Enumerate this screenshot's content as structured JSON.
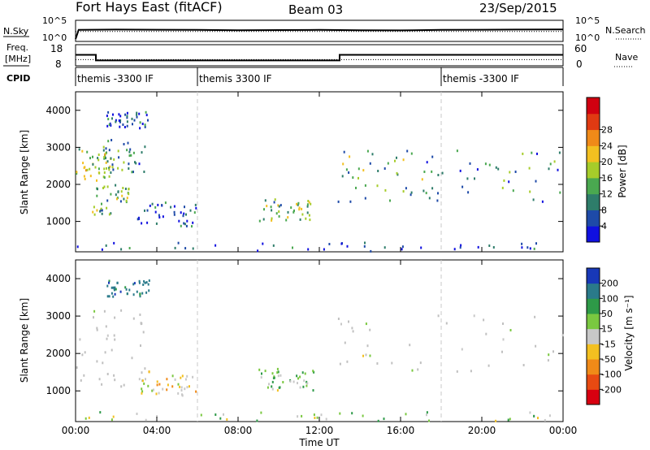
{
  "header": {
    "station": "Fort Hays East (fitACF)",
    "beam": "Beam 03",
    "date": "23/Sep/2015"
  },
  "top_panels": {
    "nsky_label": "N.Sky",
    "nsky_ticks": [
      "10^5",
      "10^0"
    ],
    "nsearch_label": "N.Search",
    "nsearch_ticks": [
      "10^5",
      "10^0"
    ],
    "freq_label": "Freq.",
    "freq_unit": "[MHz]",
    "freq_ticks": [
      "18",
      "8"
    ],
    "nave_label": "Nave",
    "nave_ticks": [
      "60",
      "0"
    ],
    "cpid_label": "CPID",
    "cpid_segments": [
      {
        "label": "themis -3300 IF",
        "start_hour": 0,
        "end_hour": 6
      },
      {
        "label": "themis 3300 IF",
        "start_hour": 6,
        "end_hour": 18
      },
      {
        "label": "themis -3300 IF",
        "start_hour": 18,
        "end_hour": 24
      }
    ]
  },
  "x_axis": {
    "label": "Time UT",
    "ticks": [
      "00:00",
      "04:00",
      "08:00",
      "12:00",
      "16:00",
      "20:00",
      "00:00"
    ],
    "range_hours": [
      0,
      24
    ]
  },
  "y_axis": {
    "label": "Slant Range [km]",
    "ticks": [
      "1000",
      "2000",
      "3000",
      "4000"
    ],
    "range_km": [
      180,
      4500
    ]
  },
  "power_colorbar": {
    "label": "Power [dB]",
    "ticks": [
      "4",
      "8",
      "12",
      "16",
      "20",
      "24",
      "28"
    ],
    "colors": [
      "#1010e0",
      "#1e4aa8",
      "#2e7d6a",
      "#4aa850",
      "#a6cc2a",
      "#f3c020",
      "#f08a18",
      "#e03a12",
      "#d00010"
    ]
  },
  "velocity_colorbar": {
    "label": "Velocity [m s⁻¹]",
    "ticks": [
      "200",
      "100",
      "50",
      "15",
      "-15",
      "-50",
      "-100",
      "-200"
    ],
    "colors": [
      "#1838b8",
      "#2a7a8a",
      "#2e9a48",
      "#7ac840",
      "#c8c8c8",
      "#f3c020",
      "#f08a18",
      "#e84a12",
      "#d80010"
    ],
    "ground_scatter_color": "#c0c0c0"
  },
  "chart_data": [
    {
      "type": "line",
      "title": "N.Sky / N.Search",
      "series": [
        {
          "name": "N.Sky",
          "note_scale": "log",
          "x_hours": [
            0,
            0.15,
            2,
            4,
            6,
            8,
            10,
            12,
            14,
            16,
            18,
            20,
            22,
            24
          ],
          "y_log10": [
            0,
            2.8,
            2.9,
            2.85,
            2.8,
            2.7,
            2.75,
            2.8,
            2.7,
            2.65,
            2.8,
            2.85,
            2.9,
            2.95
          ]
        },
        {
          "name": "N.Search",
          "x_hours": [
            0,
            24
          ],
          "y_log10": [
            2.3,
            2.3
          ]
        }
      ]
    },
    {
      "type": "line",
      "title": "Freq. / Nave",
      "series": [
        {
          "name": "Freq. [MHz]",
          "x_hours": [
            0,
            1,
            1,
            13,
            13,
            24
          ],
          "y": [
            13.5,
            13.5,
            10.2,
            10.2,
            13.5,
            13.5
          ],
          "ylim": [
            8,
            18
          ]
        },
        {
          "name": "Nave",
          "x_hours": [
            0,
            24
          ],
          "y": [
            16,
            16
          ],
          "ylim": [
            0,
            60
          ]
        }
      ]
    },
    {
      "type": "heatmap",
      "title": "Power [dB]",
      "xlabel": "Time UT",
      "ylabel": "Slant Range [km]",
      "x_unit": "hours UT",
      "xlim": [
        0,
        24
      ],
      "ylim": [
        180,
        4500
      ],
      "regions": [
        {
          "t0": 0.0,
          "t1": 1.7,
          "r0": 2000,
          "r1": 3000,
          "power": 18
        },
        {
          "t0": 0.8,
          "t1": 3.4,
          "r0": 2300,
          "r1": 3200,
          "power": 12
        },
        {
          "t0": 0.8,
          "t1": 2.6,
          "r0": 1150,
          "r1": 2050,
          "power": 15
        },
        {
          "t0": 1.5,
          "t1": 3.6,
          "r0": 3500,
          "r1": 3950,
          "power": 8
        },
        {
          "t0": 3.0,
          "t1": 5.9,
          "r0": 850,
          "r1": 1500,
          "power": 9
        },
        {
          "t0": 9.0,
          "t1": 11.7,
          "r0": 1000,
          "r1": 1600,
          "power": 14
        },
        {
          "t0": 12.9,
          "t1": 17.8,
          "r0": 1500,
          "r1": 3050,
          "power": 16
        },
        {
          "t0": 17.0,
          "t1": 24.0,
          "r0": 1500,
          "r1": 2900,
          "power": 13
        },
        {
          "t0": 0.0,
          "t1": 24.0,
          "r0": 180,
          "r1": 420,
          "power": 6
        }
      ]
    },
    {
      "type": "heatmap",
      "title": "Velocity [m s⁻¹]",
      "xlabel": "Time UT",
      "ylabel": "Slant Range [km]",
      "x_unit": "hours UT",
      "xlim": [
        0,
        24
      ],
      "ylim": [
        180,
        4500
      ],
      "regions": [
        {
          "t0": 0.0,
          "t1": 3.5,
          "r0": 1100,
          "r1": 3200,
          "velocity": 0,
          "ground_scatter": true
        },
        {
          "t0": 1.5,
          "t1": 3.6,
          "r0": 3500,
          "r1": 3950,
          "velocity": 150
        },
        {
          "t0": 3.0,
          "t1": 6.0,
          "r0": 850,
          "r1": 1500,
          "velocity": -30
        },
        {
          "t0": 9.0,
          "t1": 11.7,
          "r0": 1000,
          "r1": 1600,
          "velocity": 40
        },
        {
          "t0": 12.9,
          "t1": 24.0,
          "r0": 1500,
          "r1": 3050,
          "velocity": 0,
          "ground_scatter": true
        },
        {
          "t0": 0.0,
          "t1": 24.0,
          "r0": 180,
          "r1": 420,
          "velocity": 30
        }
      ]
    }
  ]
}
